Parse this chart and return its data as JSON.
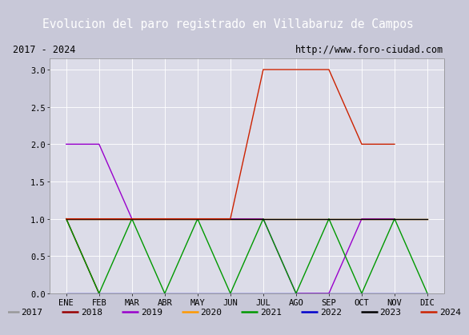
{
  "title": "Evolucion del paro registrado en Villabaruz de Campos",
  "subtitle_left": "2017 - 2024",
  "subtitle_right": "http://www.foro-ciudad.com",
  "months": [
    "ENE",
    "FEB",
    "MAR",
    "ABR",
    "MAY",
    "JUN",
    "JUL",
    "AGO",
    "SEP",
    "OCT",
    "NOV",
    "DIC"
  ],
  "series": {
    "2017": {
      "color": "#999999",
      "data": [
        1,
        0,
        null,
        null,
        null,
        null,
        null,
        null,
        null,
        null,
        null,
        null
      ]
    },
    "2018": {
      "color": "#990000",
      "data": [
        1,
        0,
        null,
        null,
        null,
        null,
        null,
        null,
        null,
        null,
        null,
        null
      ]
    },
    "2019": {
      "color": "#9900CC",
      "data": [
        2,
        2,
        1,
        1,
        1,
        1,
        1,
        0,
        0,
        1,
        1,
        null
      ]
    },
    "2020": {
      "color": "#FF9900",
      "data": [
        1,
        1,
        1,
        1,
        1,
        1,
        1,
        1,
        1,
        1,
        1,
        1
      ]
    },
    "2021": {
      "color": "#009900",
      "data": [
        1,
        0,
        1,
        0,
        1,
        0,
        1,
        0,
        1,
        0,
        1,
        0
      ]
    },
    "2022": {
      "color": "#0000CC",
      "data": [
        0,
        0,
        0,
        0,
        0,
        0,
        0,
        0,
        0,
        0,
        0,
        0
      ]
    },
    "2023": {
      "color": "#000000",
      "data": [
        1,
        1,
        1,
        1,
        1,
        1,
        1,
        1,
        1,
        1,
        1,
        1
      ]
    },
    "2024": {
      "color": "#CC2200",
      "data": [
        1,
        1,
        1,
        1,
        1,
        1,
        3,
        3,
        3,
        2,
        2,
        null
      ]
    }
  },
  "ylim": [
    0.0,
    3.15
  ],
  "yticks": [
    0.0,
    0.5,
    1.0,
    1.5,
    2.0,
    2.5,
    3.0
  ],
  "plot_bg": "#DCDCE8",
  "fig_bg": "#C8C8D8",
  "title_bg": "#4C6EAF",
  "title_color": "#FFFFFF",
  "legend_years": [
    "2017",
    "2018",
    "2019",
    "2020",
    "2021",
    "2022",
    "2023",
    "2024"
  ],
  "title_fontsize": 10.5,
  "tick_fontsize": 7.5,
  "legend_fontsize": 8
}
